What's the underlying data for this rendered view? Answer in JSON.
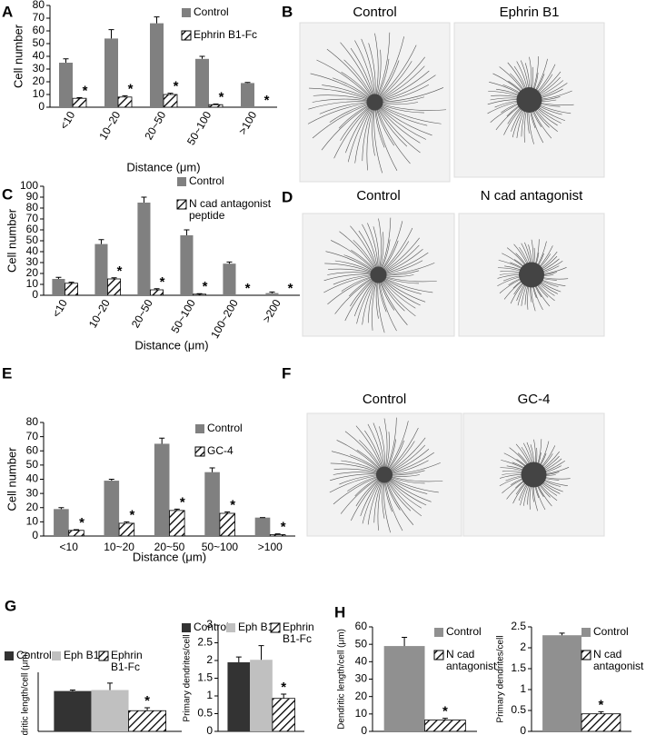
{
  "chart_data": [
    {
      "type": "bar",
      "panel": "A",
      "ylabel": "Cell number",
      "xlabel": "Distance (μm)",
      "categories": [
        "<10",
        "10~20",
        "20~50",
        "50~100",
        ">100"
      ],
      "ylim": [
        0,
        80
      ],
      "yticks": [
        0,
        10,
        20,
        30,
        40,
        50,
        60,
        70,
        80
      ],
      "xtick_rotation": -60,
      "legend": "upper right",
      "grid": false,
      "series": [
        {
          "name": "Control",
          "color": "#808080",
          "values": [
            35,
            54,
            66,
            38,
            19
          ],
          "errors": [
            3,
            7,
            5,
            2,
            0.5
          ]
        },
        {
          "name": "Ephrin B1-Fc",
          "color": "#000000",
          "pattern": "hatch",
          "values": [
            7,
            8,
            10,
            2,
            0
          ],
          "errors": [
            0.5,
            1,
            1,
            0.5,
            0
          ],
          "marker": "*",
          "marked": [
            true,
            true,
            true,
            true,
            true
          ]
        }
      ]
    },
    {
      "type": "bar",
      "panel": "C",
      "ylabel": "Cell number",
      "xlabel": "Distance (μm)",
      "categories": [
        "<10",
        "10~20",
        "20~50",
        "50~100",
        "100~200",
        ">200"
      ],
      "ylim": [
        0,
        100
      ],
      "yticks": [
        0,
        10,
        20,
        30,
        40,
        50,
        60,
        70,
        80,
        90,
        100
      ],
      "xtick_rotation": -60,
      "legend": "upper right",
      "grid": false,
      "series": [
        {
          "name": "Control",
          "color": "#808080",
          "values": [
            15,
            47,
            85,
            55,
            29,
            2
          ],
          "errors": [
            1.5,
            4,
            5,
            5,
            1.5,
            1
          ]
        },
        {
          "name": "N cad antagonist peptide",
          "color": "#000000",
          "pattern": "hatch",
          "values": [
            11,
            15,
            5,
            1,
            0,
            0
          ],
          "errors": [
            1,
            1,
            1,
            0.5,
            0,
            0
          ],
          "marker": "*",
          "marked": [
            false,
            true,
            true,
            true,
            true,
            true
          ]
        }
      ]
    },
    {
      "type": "bar",
      "panel": "E",
      "ylabel": "Cell number",
      "xlabel": "Distance (μm)",
      "categories": [
        "<10",
        "10~20",
        "20~50",
        "50~100",
        ">100"
      ],
      "ylim": [
        0,
        80
      ],
      "yticks": [
        0,
        10,
        20,
        30,
        40,
        50,
        60,
        70,
        80
      ],
      "xtick_rotation": 0,
      "legend": "upper right",
      "grid": false,
      "series": [
        {
          "name": "Control",
          "color": "#808080",
          "values": [
            19,
            39,
            65,
            45,
            13
          ],
          "errors": [
            1,
            1,
            4,
            3,
            0
          ]
        },
        {
          "name": "GC-4",
          "color": "#000000",
          "pattern": "hatch",
          "values": [
            4,
            9,
            18,
            16,
            1
          ],
          "errors": [
            0.5,
            1,
            1,
            1,
            0.5
          ],
          "marker": "*",
          "marked": [
            true,
            true,
            true,
            true,
            true
          ]
        }
      ]
    },
    {
      "type": "bar",
      "panel": "G",
      "ylabel": "Dendritic length/cell (μm)",
      "ylim": [
        0,
        60
      ],
      "legend": "top",
      "grid": false,
      "series": [
        {
          "name": "Control",
          "color": "#333333",
          "values": [
            41
          ],
          "errors": [
            1
          ]
        },
        {
          "name": "Eph B1",
          "color": "#c0c0c0",
          "values": [
            42
          ],
          "errors": [
            7
          ]
        },
        {
          "name": "Ephrin B1-Fc",
          "color": "#000000",
          "pattern": "hatch",
          "values": [
            21
          ],
          "errors": [
            3
          ],
          "marker": "*",
          "marked": [
            true
          ]
        }
      ]
    },
    {
      "type": "bar",
      "ylabel": "Primary dendrites/cell",
      "ylim": [
        0,
        3
      ],
      "yticks": [
        0,
        0.5,
        1,
        1.5,
        2,
        2.5,
        3
      ],
      "legend": "top",
      "grid": false,
      "series": [
        {
          "name": "Control",
          "color": "#333333",
          "values": [
            1.95
          ],
          "errors": [
            0.15
          ]
        },
        {
          "name": "Eph B1",
          "color": "#c0c0c0",
          "values": [
            2.02
          ],
          "errors": [
            0.4
          ]
        },
        {
          "name": "Ephrin B1-Fc",
          "color": "#000000",
          "pattern": "hatch",
          "values": [
            0.93
          ],
          "errors": [
            0.12
          ],
          "marker": "*",
          "marked": [
            true
          ]
        }
      ]
    },
    {
      "type": "bar",
      "panel": "H",
      "ylabel": "Dendritic length/cell (μm)",
      "ylim": [
        0,
        60
      ],
      "yticks": [
        0,
        10,
        20,
        30,
        40,
        50,
        60
      ],
      "legend": "upper right",
      "grid": false,
      "series": [
        {
          "name": "Control",
          "color": "#909090",
          "values": [
            49
          ],
          "errors": [
            5
          ]
        },
        {
          "name": "N cad antagonist",
          "color": "#000000",
          "pattern": "hatch",
          "values": [
            6.5
          ],
          "errors": [
            1
          ],
          "marker": "*",
          "marked": [
            true
          ]
        }
      ]
    },
    {
      "type": "bar",
      "ylabel": "Primary dendrites/cell",
      "ylim": [
        0,
        2.5
      ],
      "yticks": [
        0,
        0.5,
        1,
        1.5,
        2,
        2.5
      ],
      "legend": "upper right",
      "grid": false,
      "series": [
        {
          "name": "Control",
          "color": "#909090",
          "values": [
            2.3
          ],
          "errors": [
            0.05
          ]
        },
        {
          "name": "N cad antagonist",
          "color": "#000000",
          "pattern": "hatch",
          "values": [
            0.42
          ],
          "errors": [
            0.05
          ],
          "marker": "*",
          "marked": [
            true
          ]
        }
      ]
    }
  ],
  "images": [
    {
      "panel": "B",
      "captions": [
        "Control",
        "Ephrin B1"
      ]
    },
    {
      "panel": "D",
      "captions": [
        "Control",
        "N cad antagonist"
      ]
    },
    {
      "panel": "F",
      "captions": [
        "Control",
        "GC-4"
      ]
    }
  ]
}
